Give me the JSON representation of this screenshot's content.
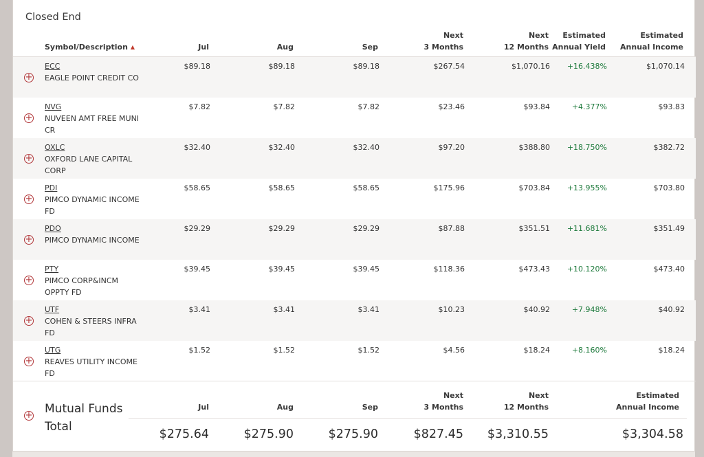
{
  "section_title": "Closed End",
  "headers": {
    "symbol": "Symbol/Description",
    "jul": "Jul",
    "aug": "Aug",
    "sep": "Sep",
    "next3_line1": "Next",
    "next3_line2": "3 Months",
    "next12_line1": "Next",
    "next12_line2": "12 Months",
    "yield_line1": "Estimated",
    "yield_line2": "Annual Yield",
    "income_line1": "Estimated",
    "income_line2": "Annual Income"
  },
  "sort_icon": "▲",
  "expand_icon": "+",
  "rows": [
    {
      "symbol": "ECC",
      "desc": "EAGLE POINT CREDIT CO",
      "jul": "$89.18",
      "aug": "$89.18",
      "sep": "$89.18",
      "next3": "$267.54",
      "next12": "$1,070.16",
      "yield": "+16.438%",
      "income": "$1,070.14"
    },
    {
      "symbol": "NVG",
      "desc": "NUVEEN AMT FREE MUNI CR",
      "jul": "$7.82",
      "aug": "$7.82",
      "sep": "$7.82",
      "next3": "$23.46",
      "next12": "$93.84",
      "yield": "+4.377%",
      "income": "$93.83"
    },
    {
      "symbol": "OXLC",
      "desc": "OXFORD LANE CAPITAL CORP",
      "jul": "$32.40",
      "aug": "$32.40",
      "sep": "$32.40",
      "next3": "$97.20",
      "next12": "$388.80",
      "yield": "+18.750%",
      "income": "$382.72"
    },
    {
      "symbol": "PDI",
      "desc": "PIMCO DYNAMIC INCOME FD",
      "jul": "$58.65",
      "aug": "$58.65",
      "sep": "$58.65",
      "next3": "$175.96",
      "next12": "$703.84",
      "yield": "+13.955%",
      "income": "$703.80"
    },
    {
      "symbol": "PDO",
      "desc": "PIMCO DYNAMIC INCOME",
      "jul": "$29.29",
      "aug": "$29.29",
      "sep": "$29.29",
      "next3": "$87.88",
      "next12": "$351.51",
      "yield": "+11.681%",
      "income": "$351.49"
    },
    {
      "symbol": "PTY",
      "desc": "PIMCO CORP&INCM OPPTY FD",
      "jul": "$39.45",
      "aug": "$39.45",
      "sep": "$39.45",
      "next3": "$118.36",
      "next12": "$473.43",
      "yield": "+10.120%",
      "income": "$473.40"
    },
    {
      "symbol": "UTF",
      "desc": "COHEN & STEERS INFRA FD",
      "jul": "$3.41",
      "aug": "$3.41",
      "sep": "$3.41",
      "next3": "$10.23",
      "next12": "$40.92",
      "yield": "+7.948%",
      "income": "$40.92"
    },
    {
      "symbol": "UTG",
      "desc": "REAVES UTILITY INCOME FD",
      "jul": "$1.52",
      "aug": "$1.52",
      "sep": "$1.52",
      "next3": "$4.56",
      "next12": "$18.24",
      "yield": "+8.160%",
      "income": "$18.24"
    }
  ],
  "mutual_funds": {
    "title": "Mutual Funds",
    "total_label": "Total",
    "headers": {
      "jul": "Jul",
      "aug": "Aug",
      "sep": "Sep",
      "next3_line1": "Next",
      "next3_line2": "3 Months",
      "next12_line1": "Next",
      "next12_line2": "12 Months",
      "income_line1": "Estimated",
      "income_line2": "Annual Income"
    },
    "totals": {
      "jul": "$275.64",
      "aug": "$275.90",
      "sep": "$275.90",
      "next3": "$827.45",
      "next12": "$3,310.55",
      "income": "$3,304.58"
    }
  },
  "colors": {
    "accent_red": "#b2373a",
    "positive_green": "#1e7a3c",
    "row_shade": "#f6f5f4"
  }
}
